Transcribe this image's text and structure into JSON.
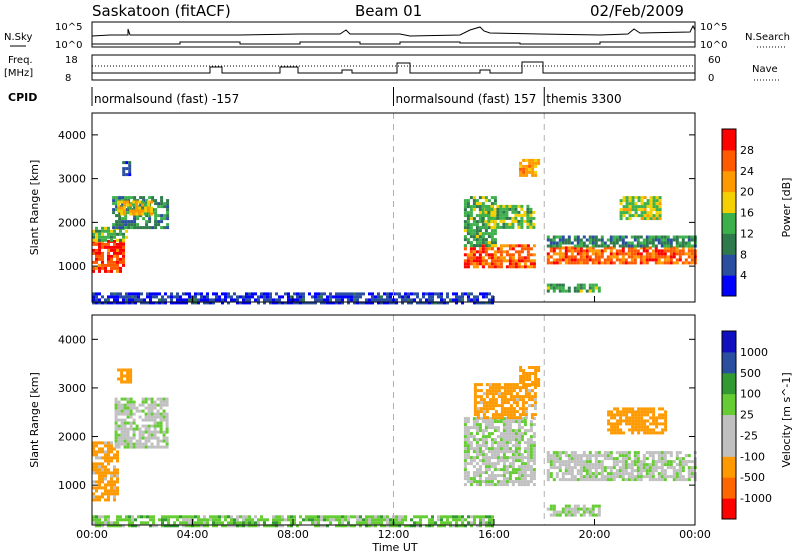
{
  "header": {
    "station": "Saskatoon (fitACF)",
    "beam": "Beam 01",
    "date": "02/Feb/2009"
  },
  "top_panel": {
    "left_label": "N.Sky",
    "left_ticks": [
      "10^5",
      "10^0"
    ],
    "right_label": "N.Search",
    "right_ticks": [
      "10^5",
      "10^0"
    ]
  },
  "freq_panel": {
    "left_label_1": "Freq.",
    "left_label_2": "[MHz]",
    "left_ticks": [
      "18",
      "8"
    ],
    "right_label": "Nave",
    "right_ticks": [
      "60",
      "0"
    ],
    "cpid_label": "CPID",
    "cpid_segments": [
      {
        "label": "normalsound (fast) -157",
        "start_hour": 0
      },
      {
        "label": "normalsound (fast) 157",
        "start_hour": 12
      },
      {
        "label": "themis 3300",
        "start_hour": 18
      }
    ]
  },
  "colors": {
    "power_scale": [
      "#0000ff",
      "#2a4fa0",
      "#2e7a4a",
      "#3cb04a",
      "#f5d000",
      "#ff9900",
      "#ff5a00",
      "#ff0000"
    ],
    "velocity_scale": [
      "#ff0000",
      "#ff6600",
      "#ff9900",
      "#c0c0c0",
      "#c0c0c0",
      "#66cc33",
      "#339933",
      "#2a4fa0",
      "#1010c0"
    ],
    "ground_scatter": "#c0c0c0"
  },
  "chart_data": [
    {
      "type": "heatmap",
      "name": "power",
      "title": "",
      "xlabel": "Time UT",
      "ylabel": "Slant Range [km]",
      "xlim": [
        0,
        24
      ],
      "ylim": [
        180,
        4500
      ],
      "x_ticks": [
        "00:00",
        "04:00",
        "08:00",
        "12:00",
        "16:00",
        "20:00",
        "00:00"
      ],
      "y_ticks": [
        "1000",
        "2000",
        "3000",
        "4000"
      ],
      "colorbar_label": "Power [dB]",
      "colorbar_ticks": [
        "4",
        "8",
        "12",
        "16",
        "20",
        "24",
        "28"
      ],
      "colorbar_range": [
        0,
        30
      ],
      "regions": [
        {
          "t0": 0.0,
          "t1": 1.2,
          "r0": 900,
          "r1": 1600,
          "value": 26
        },
        {
          "t0": 0.0,
          "t1": 1.4,
          "r0": 1600,
          "r1": 1900,
          "value": 14
        },
        {
          "t0": 0.8,
          "t1": 3.0,
          "r0": 1900,
          "r1": 2600,
          "value": 10
        },
        {
          "t0": 1.0,
          "t1": 2.4,
          "r0": 2200,
          "r1": 2500,
          "value": 18
        },
        {
          "t0": 1.2,
          "t1": 1.6,
          "r0": 3100,
          "r1": 3400,
          "value": 6
        },
        {
          "t0": 14.8,
          "t1": 17.6,
          "r0": 1000,
          "r1": 1500,
          "value": 24
        },
        {
          "t0": 14.8,
          "t1": 16.0,
          "r0": 1500,
          "r1": 2600,
          "value": 12
        },
        {
          "t0": 15.5,
          "t1": 17.6,
          "r0": 1900,
          "r1": 2400,
          "value": 14
        },
        {
          "t0": 17.0,
          "t1": 17.8,
          "r0": 3050,
          "r1": 3450,
          "value": 20
        },
        {
          "t0": 18.1,
          "t1": 24.0,
          "r0": 1100,
          "r1": 1450,
          "value": 24
        },
        {
          "t0": 18.1,
          "t1": 24.0,
          "r0": 1450,
          "r1": 1700,
          "value": 10
        },
        {
          "t0": 21.0,
          "t1": 22.6,
          "r0": 2100,
          "r1": 2600,
          "value": 16
        },
        {
          "t0": 18.1,
          "t1": 20.2,
          "r0": 400,
          "r1": 600,
          "value": 12
        },
        {
          "t0": 0.0,
          "t1": 16.0,
          "r0": 180,
          "r1": 400,
          "value": 4
        }
      ]
    },
    {
      "type": "heatmap",
      "name": "velocity",
      "title": "",
      "xlabel": "Time UT",
      "ylabel": "Slant Range [km]",
      "xlim": [
        0,
        24
      ],
      "ylim": [
        180,
        4500
      ],
      "x_ticks": [
        "00:00",
        "04:00",
        "08:00",
        "12:00",
        "16:00",
        "20:00",
        "00:00"
      ],
      "y_ticks": [
        "1000",
        "2000",
        "3000",
        "4000"
      ],
      "colorbar_label": "Velocity [m s^-1]",
      "colorbar_ticks": [
        "1000",
        "500",
        "100",
        "25",
        "-25",
        "-100",
        "-500",
        "-1000"
      ],
      "regions": [
        {
          "t0": 0.0,
          "t1": 1.0,
          "r0": 700,
          "r1": 1900,
          "value": -150
        },
        {
          "t0": 0.9,
          "t1": 3.0,
          "r0": 1800,
          "r1": 2800,
          "value": 0
        },
        {
          "t0": 1.0,
          "t1": 1.5,
          "r0": 3100,
          "r1": 3400,
          "value": -200
        },
        {
          "t0": 14.8,
          "t1": 17.6,
          "r0": 1000,
          "r1": 2400,
          "value": 0
        },
        {
          "t0": 15.2,
          "t1": 17.6,
          "r0": 2400,
          "r1": 3100,
          "value": -150
        },
        {
          "t0": 17.0,
          "t1": 17.8,
          "r0": 3050,
          "r1": 3450,
          "value": -300
        },
        {
          "t0": 18.1,
          "t1": 24.0,
          "r0": 1100,
          "r1": 1700,
          "value": 0
        },
        {
          "t0": 20.5,
          "t1": 22.8,
          "r0": 2100,
          "r1": 2600,
          "value": -200
        },
        {
          "t0": 18.1,
          "t1": 20.2,
          "r0": 400,
          "r1": 600,
          "value": 0
        },
        {
          "t0": 0.0,
          "t1": 16.0,
          "r0": 180,
          "r1": 380,
          "value": 60
        }
      ]
    }
  ]
}
